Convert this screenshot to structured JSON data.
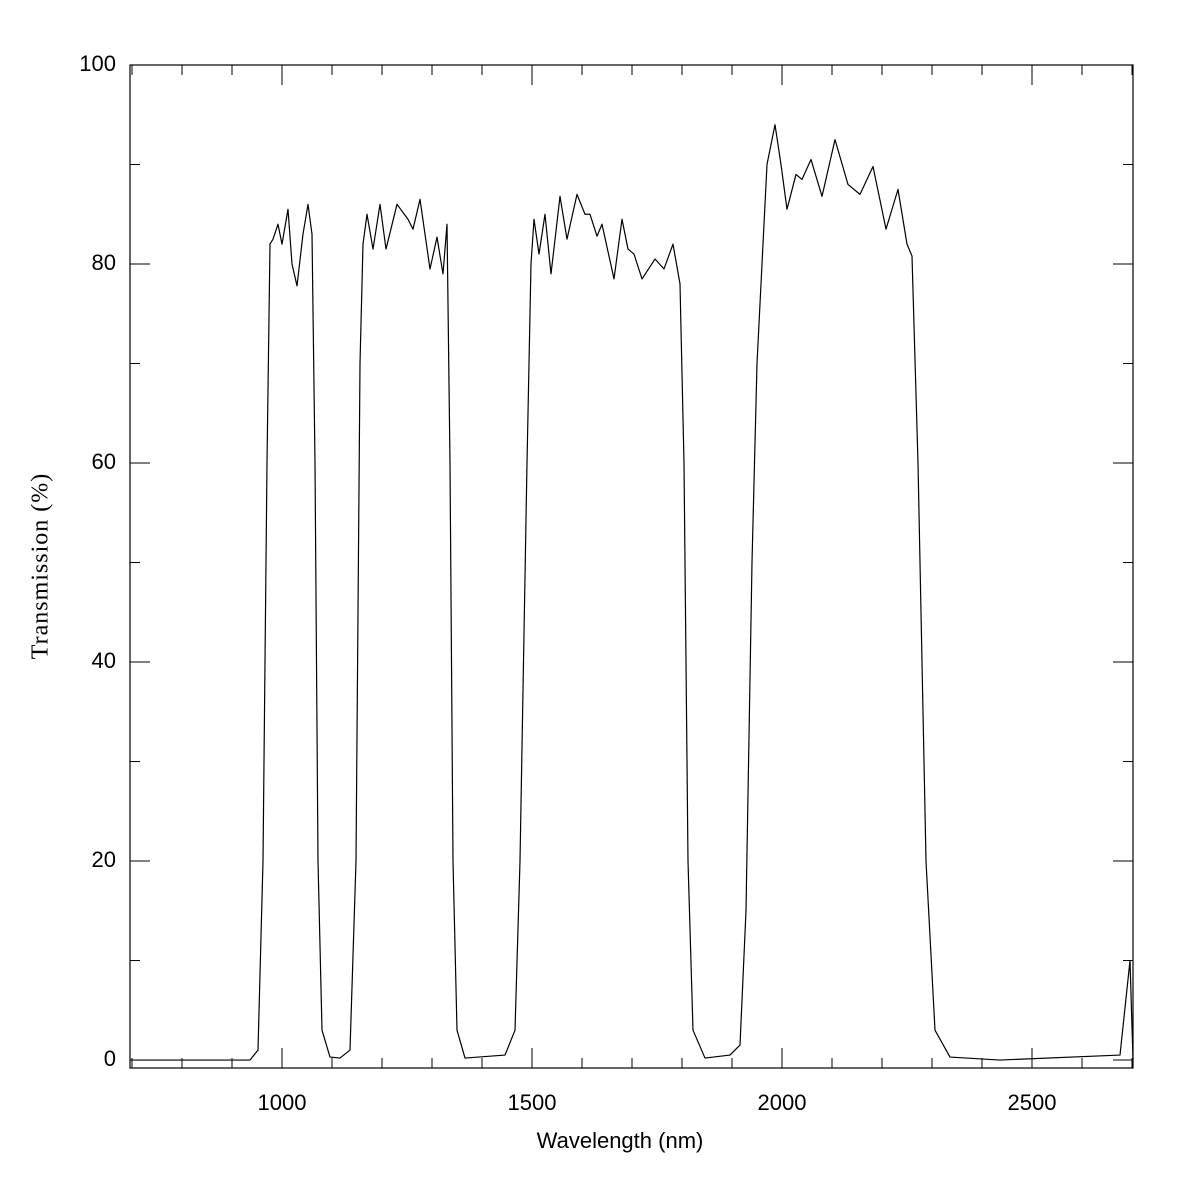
{
  "chart_data": {
    "type": "line",
    "xlabel": "Wavelength (nm)",
    "ylabel": "Transmission (%)",
    "color": "#000000",
    "x": [
      696,
      936,
      952,
      962,
      970,
      976,
      982,
      992,
      1000,
      1012,
      1020,
      1030,
      1042,
      1052,
      1060,
      1066,
      1072,
      1080,
      1096,
      1116,
      1136,
      1148,
      1156,
      1162,
      1170,
      1182,
      1196,
      1208,
      1230,
      1252,
      1262,
      1276,
      1296,
      1310,
      1322,
      1330,
      1336,
      1342,
      1350,
      1366,
      1446,
      1466,
      1476,
      1490,
      1498,
      1504,
      1514,
      1526,
      1538,
      1556,
      1570,
      1590,
      1606,
      1616,
      1630,
      1640,
      1664,
      1680,
      1692,
      1704,
      1720,
      1746,
      1764,
      1782,
      1796,
      1804,
      1812,
      1822,
      1846,
      1896,
      1916,
      1928,
      1940,
      1950,
      1960,
      1970,
      1986,
      1998,
      2010,
      2028,
      2040,
      2058,
      2080,
      2106,
      2132,
      2156,
      2182,
      2208,
      2232,
      2250,
      2260,
      2272,
      2288,
      2306,
      2336,
      2436,
      2676,
      2696,
      2702
    ],
    "values": [
      0,
      0,
      1,
      20,
      60,
      82,
      82.5,
      84,
      82,
      85.5,
      80,
      77.8,
      83,
      86,
      83,
      60,
      20,
      3,
      0.3,
      0.2,
      1,
      20,
      70,
      82,
      85,
      81.5,
      86,
      81.5,
      86,
      84.5,
      83.5,
      86.5,
      79.5,
      82.7,
      79,
      84,
      60,
      20,
      3,
      0.2,
      0.5,
      3,
      20,
      60,
      80,
      84.5,
      81,
      85,
      79,
      86.8,
      82.5,
      87,
      85,
      85,
      82.8,
      84,
      78.5,
      84.5,
      81.5,
      81,
      78.5,
      80.5,
      79.5,
      82,
      78,
      60,
      20,
      3,
      0.2,
      0.5,
      1.5,
      15,
      50,
      70,
      80,
      90,
      94,
      90,
      85.5,
      89,
      88.5,
      90.5,
      86.8,
      92.5,
      88,
      87,
      89.8,
      83.5,
      87.5,
      82,
      80.8,
      60,
      20,
      3,
      0.3,
      0,
      0.5,
      10,
      0
    ],
    "xlim": [
      696,
      2702
    ],
    "ylim": [
      -0.8,
      100
    ],
    "xticks": [
      1000,
      1500,
      2000,
      2500
    ],
    "yticks": [
      0,
      20,
      40,
      60,
      80,
      100
    ],
    "xminorticks": [
      700,
      800,
      900,
      1100,
      1200,
      1300,
      1400,
      1600,
      1700,
      1800,
      1900,
      2100,
      2200,
      2300,
      2400,
      2600,
      2700
    ],
    "yminorticks": [
      10,
      30,
      50,
      70,
      90
    ]
  }
}
